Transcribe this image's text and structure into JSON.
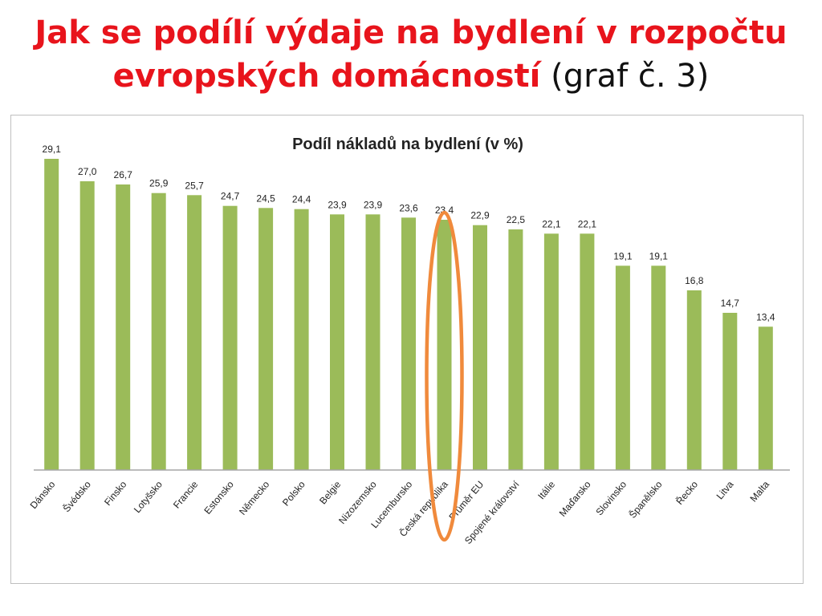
{
  "slide": {
    "title_main": "Jak se podílí výdaje na bydlení v rozpočtu evropských domácností",
    "title_sub": "(graf č. 3)"
  },
  "chart_data": {
    "type": "bar",
    "title": "Podíl nákladů na bydlení (v %)",
    "categories": [
      "Dánsko",
      "Švédsko",
      "Finsko",
      "Lotyšsko",
      "Francie",
      "Estonsko",
      "Německo",
      "Polsko",
      "Belgie",
      "Nizozemsko",
      "Lucembursko",
      "Česká republika",
      "Průměr EU",
      "Spojené království",
      "Itálie",
      "Maďarsko",
      "Slovinsko",
      "Španělsko",
      "Řecko",
      "Litva",
      "Malta"
    ],
    "values": [
      29.1,
      27.0,
      26.7,
      25.9,
      25.7,
      24.7,
      24.5,
      24.4,
      23.9,
      23.9,
      23.6,
      23.4,
      22.9,
      22.5,
      22.1,
      22.1,
      19.1,
      19.1,
      16.8,
      14.7,
      13.4
    ],
    "value_labels": [
      "29,1",
      "27,0",
      "26,7",
      "25,9",
      "25,7",
      "24,7",
      "24,5",
      "24,4",
      "23,9",
      "23,9",
      "23,6",
      "23,4",
      "22,9",
      "22,5",
      "22,1",
      "22,1",
      "19,1",
      "19,1",
      "16,8",
      "14,7",
      "13,4"
    ],
    "ylim": [
      0,
      30
    ],
    "grid": false,
    "legend": "none",
    "bar_color": "#9bbb59",
    "highlight": {
      "category": "Česká republika",
      "shape": "ellipse",
      "color": "#f08a3c"
    }
  }
}
